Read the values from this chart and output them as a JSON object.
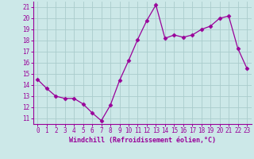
{
  "x": [
    0,
    1,
    2,
    3,
    4,
    5,
    6,
    7,
    8,
    9,
    10,
    11,
    12,
    13,
    14,
    15,
    16,
    17,
    18,
    19,
    20,
    21,
    22,
    23
  ],
  "y": [
    14.5,
    13.7,
    13.0,
    12.8,
    12.8,
    12.3,
    11.5,
    10.8,
    12.2,
    14.4,
    16.2,
    18.1,
    19.8,
    21.2,
    18.2,
    18.5,
    18.3,
    18.5,
    19.0,
    19.3,
    20.0,
    20.2,
    17.3,
    15.5
  ],
  "line_color": "#990099",
  "marker": "D",
  "marker_size": 2.5,
  "bg_color": "#cce8e8",
  "grid_color": "#aacccc",
  "xlabel": "Windchill (Refroidissement éolien,°C)",
  "xlabel_color": "#990099",
  "tick_color": "#990099",
  "axis_color": "#990099",
  "ylim": [
    10.5,
    21.5
  ],
  "xlim": [
    -0.5,
    23.5
  ],
  "yticks": [
    11,
    12,
    13,
    14,
    15,
    16,
    17,
    18,
    19,
    20,
    21
  ],
  "xticks": [
    0,
    1,
    2,
    3,
    4,
    5,
    6,
    7,
    8,
    9,
    10,
    11,
    12,
    13,
    14,
    15,
    16,
    17,
    18,
    19,
    20,
    21,
    22,
    23
  ],
  "tick_fontsize": 5.5,
  "xlabel_fontsize": 6.0
}
